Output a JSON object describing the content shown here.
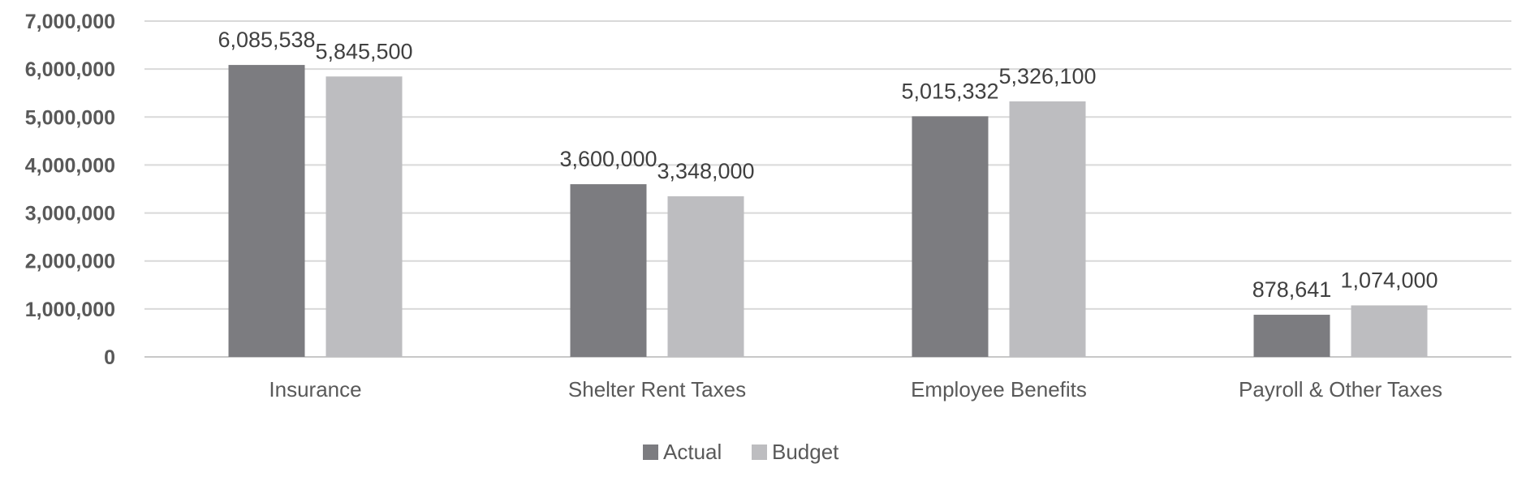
{
  "chart_data": {
    "type": "bar",
    "title": "",
    "xlabel": "",
    "ylabel": "",
    "categories": [
      "Insurance",
      "Shelter Rent Taxes",
      "Employee Benefits",
      "Payroll & Other Taxes"
    ],
    "series": [
      {
        "name": "Actual",
        "color": "#7c7c80",
        "values": [
          6085538,
          3600000,
          5015332,
          878641
        ],
        "labels": [
          "6,085,538",
          "3,600,000",
          "5,015,332",
          "878,641"
        ]
      },
      {
        "name": "Budget",
        "color": "#bdbdc0",
        "values": [
          5845500,
          3348000,
          5326100,
          1074000
        ],
        "labels": [
          "5,845,500",
          "3,348,000",
          "5,326,100",
          "1,074,000"
        ]
      }
    ],
    "ylim": [
      0,
      7000000
    ],
    "ytick_values": [
      0,
      1000000,
      2000000,
      3000000,
      4000000,
      5000000,
      6000000,
      7000000
    ],
    "ytick_labels": [
      "0",
      "1,000,000",
      "2,000,000",
      "3,000,000",
      "4,000,000",
      "5,000,000",
      "6,000,000",
      "7,000,000"
    ],
    "grid": true,
    "legend_position": "bottom-center"
  }
}
